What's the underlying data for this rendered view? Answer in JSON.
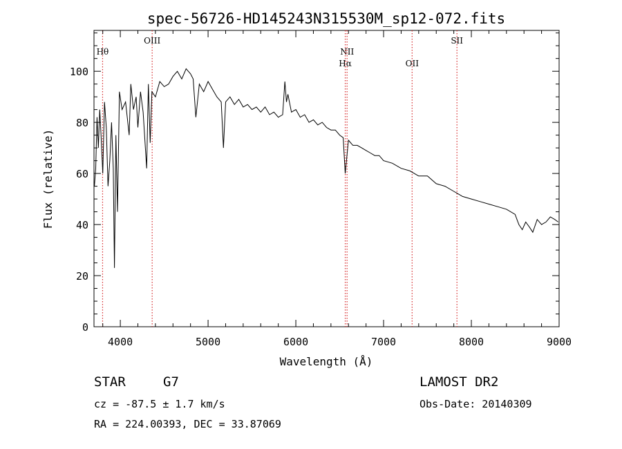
{
  "chart_data": {
    "type": "line",
    "title": "spec-56726-HD145243N315530M_sp12-072.fits",
    "xlabel": "Wavelength (Å)",
    "ylabel": "Flux (relative)",
    "xlim": [
      3700,
      9000
    ],
    "ylim": [
      0,
      116
    ],
    "x_ticks": [
      4000,
      5000,
      6000,
      7000,
      8000,
      9000
    ],
    "y_ticks": [
      0,
      20,
      40,
      60,
      80,
      100
    ],
    "line_color": "#000000",
    "marker_color": "#d62728",
    "series": [
      {
        "x": [
          3705,
          3720,
          3735,
          3750,
          3765,
          3780,
          3800,
          3820,
          3840,
          3860,
          3880,
          3900,
          3920,
          3933,
          3950,
          3968,
          3990,
          4020,
          4060,
          4101,
          4120,
          4150,
          4180,
          4200,
          4230,
          4260,
          4300,
          4320,
          4340,
          4360,
          4400,
          4450,
          4500,
          4550,
          4600,
          4650,
          4700,
          4750,
          4800,
          4830,
          4861,
          4900,
          4950,
          5000,
          5050,
          5100,
          5150,
          5175,
          5200,
          5250,
          5300,
          5350,
          5400,
          5450,
          5500,
          5550,
          5600,
          5650,
          5700,
          5750,
          5800,
          5850,
          5875,
          5893,
          5910,
          5950,
          6000,
          6050,
          6100,
          6150,
          6200,
          6250,
          6300,
          6350,
          6400,
          6450,
          6500,
          6540,
          6563,
          6600,
          6650,
          6700,
          6750,
          6800,
          6850,
          6900,
          6950,
          7000,
          7100,
          7200,
          7300,
          7400,
          7500,
          7600,
          7700,
          7800,
          7850,
          7900,
          8000,
          8100,
          8200,
          8300,
          8400,
          8498,
          8520,
          8542,
          8580,
          8620,
          8662,
          8700,
          8750,
          8800,
          8850,
          8900,
          8950,
          8990
        ],
        "y": [
          55,
          62,
          82,
          70,
          85,
          75,
          60,
          88,
          78,
          55,
          65,
          80,
          62,
          23,
          75,
          45,
          92,
          85,
          88,
          75,
          95,
          85,
          90,
          78,
          92,
          84,
          62,
          95,
          72,
          92,
          90,
          96,
          94,
          95,
          98,
          100,
          97,
          101,
          99,
          97,
          82,
          95,
          92,
          96,
          93,
          90,
          88,
          70,
          88,
          90,
          87,
          89,
          86,
          87,
          85,
          86,
          84,
          86,
          83,
          84,
          82,
          83,
          96,
          88,
          91,
          84,
          85,
          82,
          83,
          80,
          81,
          79,
          80,
          78,
          77,
          77,
          75,
          74,
          60,
          73,
          71,
          71,
          70,
          69,
          68,
          67,
          67,
          65,
          64,
          62,
          61,
          59,
          59,
          56,
          55,
          53,
          52,
          51,
          50,
          49,
          48,
          47,
          46,
          44,
          42,
          40,
          38,
          41,
          39,
          37,
          42,
          40,
          41,
          43,
          42,
          41
        ]
      }
    ],
    "line_markers": [
      {
        "label": "Hθ",
        "x": 3798,
        "row": 2
      },
      {
        "label": "OIII",
        "x": 4363,
        "row": 1
      },
      {
        "label": "NII",
        "x": 6584,
        "row": 2
      },
      {
        "label": "Hα",
        "x": 6563,
        "row": 3
      },
      {
        "label": "OII",
        "x": 7325,
        "row": 3
      },
      {
        "label": "SII",
        "x": 7836,
        "row": 1
      }
    ]
  },
  "info": {
    "object_class": "STAR",
    "subclass": "G7",
    "cz": "cz = -87.5 ± 1.7 km/s",
    "coords": "RA = 224.00393, DEC =  33.87069",
    "survey": "LAMOST DR2",
    "obs_date": "Obs-Date: 20140309"
  }
}
